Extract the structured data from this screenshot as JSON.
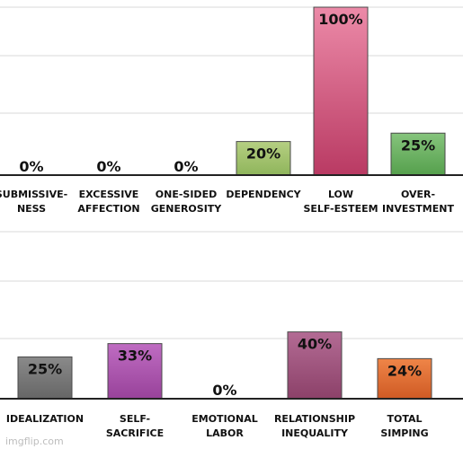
{
  "watermark": "imgflip.com",
  "chart_data": [
    {
      "type": "bar",
      "categories": [
        [
          "SUBMISSIVE-",
          "NESS"
        ],
        [
          "EXCESSIVE",
          "AFFECTION"
        ],
        [
          "ONE-SIDED",
          "GENEROSITY"
        ],
        [
          "DEPENDENCY"
        ],
        [
          "LOW",
          "SELF-ESTEEM"
        ],
        [
          "OVER-",
          "INVESTMENT"
        ]
      ],
      "values": [
        0,
        0,
        0,
        20,
        100,
        25
      ],
      "value_labels": [
        "0%",
        "0%",
        "0%",
        "20%",
        "100%",
        "25%"
      ],
      "colors": [
        [
          "#999999",
          "#999999"
        ],
        [
          "#999999",
          "#999999"
        ],
        [
          "#999999",
          "#999999"
        ],
        [
          "#b5cf82",
          "#8fb55b"
        ],
        [
          "#ec8aa8",
          "#b93a63"
        ],
        [
          "#86c47c",
          "#55a04d"
        ]
      ],
      "ylim": [
        0,
        100
      ],
      "grid": true
    },
    {
      "type": "bar",
      "categories": [
        [
          "IDEALIZATION"
        ],
        [
          "SELF-",
          "SACRIFICE"
        ],
        [
          "EMOTIONAL",
          "LABOR"
        ],
        [
          "RELATIONSHIP",
          "INEQUALITY"
        ],
        [
          "TOTAL",
          "SIMPING"
        ]
      ],
      "values": [
        25,
        33,
        0,
        40,
        24
      ],
      "value_labels": [
        "25%",
        "33%",
        "0%",
        "40%",
        "24%"
      ],
      "colors": [
        [
          "#8a8a8a",
          "#666666"
        ],
        [
          "#bf6cc2",
          "#98429a"
        ],
        [
          "#999999",
          "#999999"
        ],
        [
          "#b36b94",
          "#8c4169"
        ],
        [
          "#ef8548",
          "#cf5a24"
        ]
      ],
      "ylim": [
        0,
        100
      ],
      "grid": true
    }
  ]
}
